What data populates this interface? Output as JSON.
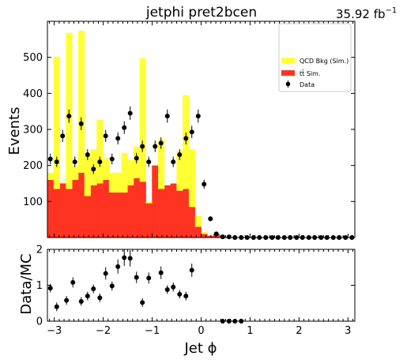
{
  "chart_data": {
    "type": "bar",
    "title": "jetphi  pret2bcen",
    "lumi_label": "35.92 fb",
    "lumi_exponent": "−1",
    "xlabel": "Jet ϕ",
    "ylabel_top": "Events",
    "ylabel_bottom": "Data/MC",
    "xlim": [
      -3.14,
      3.14
    ],
    "ylim_top": [
      0,
      600
    ],
    "ylim_bottom": [
      0,
      2
    ],
    "x_ticks": [
      -3,
      -2,
      -1,
      0,
      1,
      2,
      3
    ],
    "x_tick_labels": [
      "−3",
      "−2",
      "−1",
      "0",
      "1",
      "2",
      "3"
    ],
    "y_ticks_top": [
      100,
      200,
      300,
      400,
      500
    ],
    "y_ticks_bottom": [
      0,
      1,
      2
    ],
    "legend": {
      "placement": "top-right",
      "entries": [
        {
          "label": "QCD Bkg (Sim.)",
          "color": "#ffff33",
          "kind": "box"
        },
        {
          "label": "tt̄ Sim.",
          "color": "#ff3322",
          "kind": "box"
        },
        {
          "label": "Data",
          "color": "#000000",
          "kind": "marker"
        }
      ]
    },
    "bin_edges": [
      -3.14,
      -3.0144,
      -2.8888,
      -2.7632,
      -2.6376,
      -2.512,
      -2.3864,
      -2.2608,
      -2.1352,
      -2.0096,
      -1.884,
      -1.7584,
      -1.6328,
      -1.5072,
      -1.3816,
      -1.256,
      -1.1304,
      -1.0048,
      -0.8792,
      -0.7536,
      -0.628,
      -0.5024,
      -0.3768,
      -0.2512,
      -0.1256,
      0.0,
      0.1256,
      0.2512,
      0.3768,
      0.5024,
      0.628,
      0.7536,
      0.8792,
      1.0048,
      1.1304,
      1.256,
      1.3816,
      1.5072,
      1.6328,
      1.7584,
      1.884,
      2.0096,
      2.1352,
      2.2608,
      2.3864,
      2.512,
      2.6376,
      2.7632,
      2.8888,
      3.0144,
      3.14
    ],
    "series": [
      {
        "name": "tt̄ Sim.",
        "color": "#ff3322",
        "values": [
          160,
          135,
          150,
          135,
          160,
          180,
          115,
          145,
          150,
          160,
          125,
          125,
          125,
          145,
          165,
          155,
          95,
          200,
          135,
          145,
          150,
          130,
          135,
          85,
          30,
          10,
          5,
          10,
          0,
          0,
          0,
          0,
          0,
          0,
          0,
          0,
          0,
          0,
          0,
          0,
          0,
          0,
          0,
          0,
          0,
          0,
          0,
          0,
          0,
          0
        ]
      },
      {
        "name": "QCD Bkg (Sim.)",
        "color": "#ffff33",
        "values": [
          20,
          367,
          2,
          433,
          38,
          394,
          115,
          100,
          177,
          60,
          55,
          55,
          110,
          70,
          87,
          343,
          5,
          0,
          137,
          0,
          0,
          110,
          260,
          160,
          30,
          5,
          0,
          0,
          0,
          0,
          0,
          0,
          0,
          0,
          0,
          0,
          0,
          0,
          0,
          0,
          0,
          0,
          0,
          0,
          0,
          0,
          0,
          0,
          0,
          0
        ]
      }
    ],
    "data_points": {
      "x": [
        -3.08,
        -2.95,
        -2.83,
        -2.7,
        -2.58,
        -2.45,
        -2.32,
        -2.2,
        -2.07,
        -1.95,
        -1.82,
        -1.7,
        -1.57,
        -1.45,
        -1.32,
        -1.2,
        -1.07,
        -0.94,
        -0.82,
        -0.69,
        -0.57,
        -0.44,
        -0.31,
        -0.19,
        -0.06,
        0.06,
        0.19,
        0.31,
        0.44,
        0.57,
        0.69,
        0.82,
        0.94,
        1.07,
        1.19,
        1.32,
        1.45,
        1.57,
        1.7,
        1.82,
        1.95,
        2.07,
        2.2,
        2.32,
        2.45,
        2.57,
        2.7,
        2.82,
        2.95,
        3.08
      ],
      "y": [
        218,
        210,
        282,
        337,
        210,
        316,
        230,
        190,
        210,
        282,
        218,
        275,
        305,
        345,
        220,
        253,
        210,
        253,
        262,
        337,
        210,
        230,
        275,
        293,
        337,
        148,
        52,
        10,
        2,
        2,
        0,
        0,
        0,
        0,
        0,
        0,
        0,
        0,
        0,
        0,
        0,
        0,
        0,
        0,
        0,
        0,
        0,
        0,
        0,
        0
      ]
    },
    "ratio_points": {
      "x": [
        -3.08,
        -2.95,
        -2.75,
        -2.62,
        -2.45,
        -2.32,
        -2.2,
        -2.07,
        -1.95,
        -1.82,
        -1.7,
        -1.57,
        -1.45,
        -1.32,
        -1.2,
        -1.07,
        -0.82,
        -0.69,
        -0.57,
        -0.44,
        -0.31,
        -0.19,
        0.44,
        0.57,
        0.69,
        0.82
      ],
      "y": [
        0.92,
        0.4,
        0.58,
        1.08,
        0.55,
        0.7,
        0.9,
        0.65,
        1.33,
        0.98,
        1.52,
        1.77,
        1.75,
        1.22,
        0.52,
        1.2,
        1.35,
        0.88,
        0.95,
        0.75,
        0.7,
        1.42,
        0.0,
        0.0,
        0.0,
        0.0
      ]
    }
  }
}
